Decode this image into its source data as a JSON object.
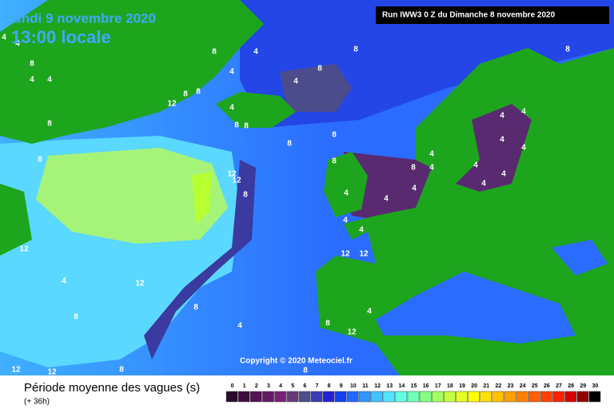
{
  "header": {
    "date": "Lundi 9 novembre 2020",
    "time": "13:00 locale",
    "run": "Run IWW3 0 Z du Dimanche 8 novembre 2020"
  },
  "copyright": "Copyright © 2020 Meteociel.fr",
  "legend": {
    "title": "Période moyenne des vagues (s)",
    "lead": "(+ 36h)",
    "values": [
      0,
      1,
      2,
      3,
      4,
      5,
      6,
      7,
      8,
      9,
      10,
      11,
      12,
      13,
      14,
      15,
      16,
      17,
      18,
      19,
      20,
      21,
      22,
      23,
      24,
      25,
      26,
      27,
      28,
      29,
      30
    ],
    "colors": [
      "#2b0a2b",
      "#3e0d3e",
      "#511251",
      "#641864",
      "#772277",
      "#6a3a78",
      "#4c4c8c",
      "#3a3ab4",
      "#2222d4",
      "#1040f0",
      "#2068ff",
      "#3094ff",
      "#40c4ff",
      "#50e4ff",
      "#60ffe4",
      "#70ffb8",
      "#84ff84",
      "#a4ff60",
      "#c4ff40",
      "#e4ff20",
      "#ffff00",
      "#ffe000",
      "#ffc000",
      "#ffa000",
      "#ff8000",
      "#ff6000",
      "#ff4000",
      "#ff2000",
      "#d80000",
      "#900000",
      "#000000"
    ]
  },
  "map_labels": [
    4,
    8,
    4,
    4,
    4,
    8,
    8,
    12,
    8,
    8,
    4,
    4,
    8,
    8,
    4,
    8,
    8,
    8,
    8,
    4,
    8,
    12,
    12,
    8,
    4,
    4,
    4,
    4,
    4,
    4,
    4,
    4,
    4,
    8,
    4,
    4,
    4,
    4,
    4,
    8,
    12,
    12,
    12,
    8,
    8,
    8,
    12,
    4,
    12,
    12,
    12,
    4,
    8,
    4,
    8,
    8
  ]
}
